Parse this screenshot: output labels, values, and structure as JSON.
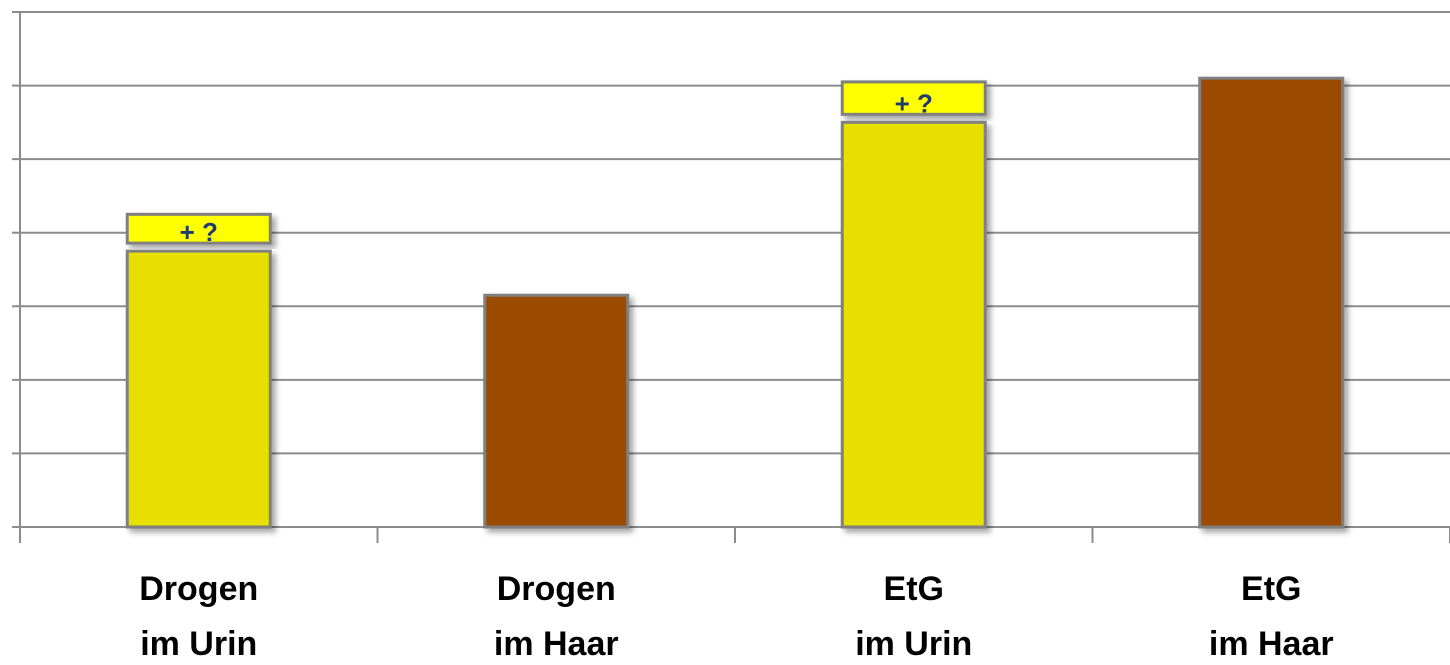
{
  "chart_data": {
    "type": "bar",
    "title": "",
    "xlabel": "",
    "ylabel": "",
    "categories": [
      [
        "Drogen",
        "im Urin"
      ],
      [
        "Drogen",
        "im Haar"
      ],
      [
        "EtG",
        "im Urin"
      ],
      [
        "EtG",
        "im Haar"
      ]
    ],
    "values": [
      3.75,
      3.15,
      5.5,
      6.1
    ],
    "extra": [
      0.5,
      0,
      0.55,
      0
    ],
    "extra_label": "+ ?",
    "ylim": [
      0,
      7
    ],
    "gridlines": [
      0,
      1,
      2,
      3,
      4,
      5,
      6,
      7
    ],
    "grid": true,
    "legend": "none",
    "colors": {
      "urin": "#e6df00",
      "haar": "#9a4b00",
      "badge": "#ffff00",
      "grid": "#8c8c8c",
      "bar_border": "#808080",
      "badge_text": "#1f3a6e"
    },
    "bar_colors": [
      "#e6df00",
      "#9a4b00",
      "#e6df00",
      "#9a4b00"
    ]
  }
}
